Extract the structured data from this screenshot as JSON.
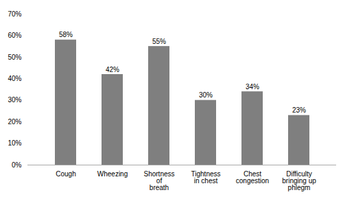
{
  "chart_data": {
    "type": "bar",
    "categories": [
      "Cough",
      "Wheezing",
      "Shortness\nof\nbreath",
      "Tightness\nin chest",
      "Chest\ncongestion",
      "Difficulty\nbringing up\nphlegm"
    ],
    "values": [
      58,
      42,
      55,
      30,
      34,
      23
    ],
    "value_labels": [
      "58%",
      "42%",
      "55%",
      "30%",
      "34%",
      "23%"
    ],
    "data_labels": true,
    "color": "#7f7f7f",
    "ylim": [
      0,
      70
    ],
    "yticks": [
      {
        "value": 0,
        "label": "0%"
      },
      {
        "value": 10,
        "label": "10%"
      },
      {
        "value": 20,
        "label": "20%"
      },
      {
        "value": 30,
        "label": "30%"
      },
      {
        "value": 40,
        "label": "40%"
      },
      {
        "value": 50,
        "label": "50%"
      },
      {
        "value": 60,
        "label": "60%"
      },
      {
        "value": 70,
        "label": "70%"
      }
    ],
    "grid": false
  }
}
